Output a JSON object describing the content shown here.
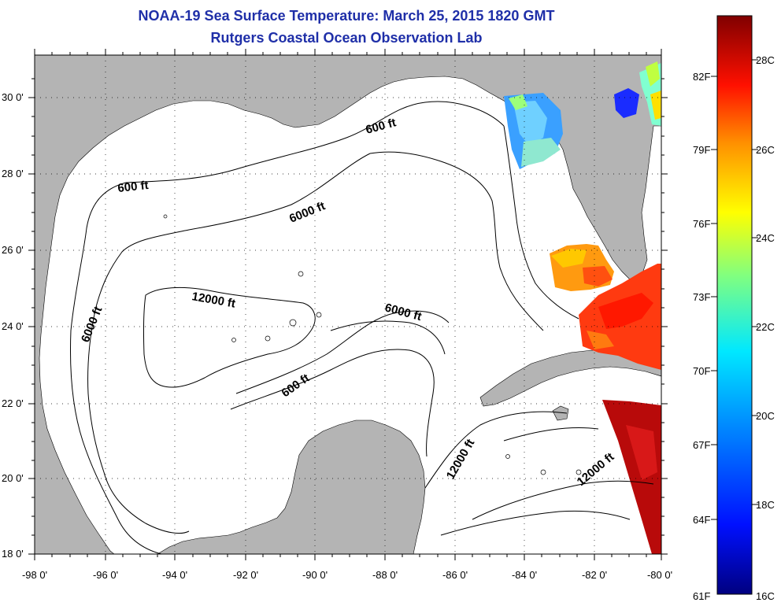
{
  "title": {
    "line1": "NOAA-19 Sea Surface Temperature:  March 25, 2015 1820 GMT",
    "line2": "Rutgers Coastal Ocean Observation Lab"
  },
  "axes": {
    "lat_labels": [
      "30 0'",
      "28 0'",
      "26 0'",
      "24 0'",
      "22 0'",
      "20 0'",
      "18 0'"
    ],
    "lon_labels": [
      "-98 0'",
      "-96 0'",
      "-94 0'",
      "-92 0'",
      "-90 0'",
      "-88 0'",
      "-86 0'",
      "-84 0'",
      "-82 0'",
      "-80 0'"
    ],
    "lat_range": [
      18,
      31
    ],
    "lon_range": [
      -98,
      -80
    ],
    "grid": "dotted"
  },
  "contours": {
    "c600_top": "600 ft",
    "c600_left": "600 ft",
    "c6000_mid": "6000 ft",
    "c6000_left": "6000 ft",
    "c12000_center": "12000 ft",
    "c6000_east": "6000 ft",
    "c600_south": "600 ft",
    "c12000_yucatan": "12000 ft",
    "c12000_cuba": "12000 ft"
  },
  "colorbar": {
    "f_labels": [
      "82F",
      "79F",
      "76F",
      "73F",
      "70F",
      "67F",
      "64F",
      "61F"
    ],
    "c_labels": [
      "28C",
      "26C",
      "24C",
      "22C",
      "20C",
      "18C",
      "16C"
    ]
  },
  "colors": {
    "land": "#b4b4b4",
    "title": "#1f2fa8",
    "ocean": "#ffffff"
  }
}
